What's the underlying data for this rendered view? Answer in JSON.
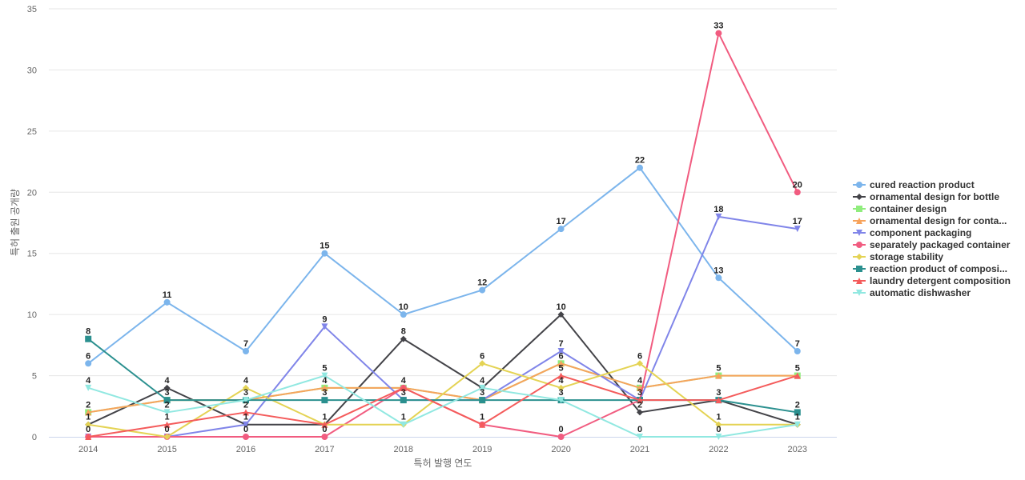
{
  "chart_data": {
    "type": "line",
    "title": "",
    "xlabel": "특허 발행 연도",
    "ylabel": "특허 출원 공개량",
    "ylim": [
      0,
      35
    ],
    "yticks": [
      0,
      5,
      10,
      15,
      20,
      25,
      30,
      35
    ],
    "grid": true,
    "legend": "right",
    "x": [
      "2014",
      "2015",
      "2016",
      "2017",
      "2018",
      "2019",
      "2020",
      "2021",
      "2022",
      "2023"
    ],
    "series": [
      {
        "name": "cured reaction product",
        "color": "#7cb5ec",
        "marker": "circle",
        "values": [
          6,
          11,
          7,
          15,
          10,
          12,
          17,
          22,
          13,
          7
        ]
      },
      {
        "name": "ornamental design for bottle",
        "color": "#434348",
        "marker": "diamond",
        "values": [
          1,
          4,
          1,
          1,
          8,
          4,
          10,
          2,
          3,
          1
        ]
      },
      {
        "name": "container design",
        "color": "#90ed7d",
        "marker": "square",
        "values": [
          2,
          3,
          3,
          4,
          4,
          3,
          6,
          4,
          5,
          5
        ]
      },
      {
        "name": "ornamental design for conta...",
        "color": "#f7a35c",
        "marker": "triangle",
        "values": [
          2,
          3,
          3,
          4,
          4,
          3,
          6,
          4,
          5,
          5
        ]
      },
      {
        "name": "component packaging",
        "color": "#8085e9",
        "marker": "triangle-down",
        "values": [
          0,
          0,
          1,
          9,
          3,
          3,
          7,
          3,
          18,
          17
        ]
      },
      {
        "name": "separately packaged container",
        "color": "#f15c80",
        "marker": "circle",
        "values": [
          0,
          0,
          0,
          0,
          4,
          1,
          0,
          3,
          33,
          20
        ]
      },
      {
        "name": "storage stability",
        "color": "#e4d354",
        "marker": "diamond",
        "values": [
          1,
          0,
          4,
          1,
          1,
          6,
          4,
          6,
          1,
          1
        ]
      },
      {
        "name": "reaction product of composi...",
        "color": "#2b908f",
        "marker": "square",
        "values": [
          8,
          3,
          3,
          3,
          3,
          3,
          3,
          3,
          3,
          2
        ]
      },
      {
        "name": "laundry detergent composition",
        "color": "#f45b5b",
        "marker": "triangle",
        "values": [
          0,
          1,
          2,
          1,
          4,
          1,
          5,
          3,
          3,
          5
        ]
      },
      {
        "name": "automatic dishwasher",
        "color": "#91e8e1",
        "marker": "triangle-down",
        "values": [
          4,
          2,
          3,
          5,
          1,
          4,
          3,
          0,
          0,
          1
        ]
      }
    ],
    "data_labels": [
      {
        "x": "2014",
        "text": "8",
        "v": 8
      },
      {
        "x": "2014",
        "text": "6",
        "v": 6
      },
      {
        "x": "2014",
        "text": "4",
        "v": 4
      },
      {
        "x": "2014",
        "text": "2",
        "v": 2
      },
      {
        "x": "2014",
        "text": "1",
        "v": 1
      },
      {
        "x": "2014",
        "text": "0",
        "v": 0
      },
      {
        "x": "2015",
        "text": "11",
        "v": 11
      },
      {
        "x": "2015",
        "text": "4",
        "v": 4
      },
      {
        "x": "2015",
        "text": "3",
        "v": 3
      },
      {
        "x": "2015",
        "text": "2",
        "v": 2
      },
      {
        "x": "2015",
        "text": "1",
        "v": 1
      },
      {
        "x": "2015",
        "text": "0",
        "v": 0
      },
      {
        "x": "2016",
        "text": "7",
        "v": 7
      },
      {
        "x": "2016",
        "text": "4",
        "v": 4
      },
      {
        "x": "2016",
        "text": "3",
        "v": 3
      },
      {
        "x": "2016",
        "text": "2",
        "v": 2
      },
      {
        "x": "2016",
        "text": "1",
        "v": 1
      },
      {
        "x": "2016",
        "text": "0",
        "v": 0
      },
      {
        "x": "2017",
        "text": "15",
        "v": 15
      },
      {
        "x": "2017",
        "text": "9",
        "v": 9
      },
      {
        "x": "2017",
        "text": "5",
        "v": 5
      },
      {
        "x": "2017",
        "text": "4",
        "v": 4
      },
      {
        "x": "2017",
        "text": "3",
        "v": 3
      },
      {
        "x": "2017",
        "text": "1",
        "v": 1
      },
      {
        "x": "2017",
        "text": "0",
        "v": 0
      },
      {
        "x": "2018",
        "text": "10",
        "v": 10
      },
      {
        "x": "2018",
        "text": "8",
        "v": 8
      },
      {
        "x": "2018",
        "text": "4",
        "v": 4
      },
      {
        "x": "2018",
        "text": "3",
        "v": 3
      },
      {
        "x": "2018",
        "text": "1",
        "v": 1
      },
      {
        "x": "2019",
        "text": "12",
        "v": 12
      },
      {
        "x": "2019",
        "text": "6",
        "v": 6
      },
      {
        "x": "2019",
        "text": "4",
        "v": 4
      },
      {
        "x": "2019",
        "text": "3",
        "v": 3
      },
      {
        "x": "2019",
        "text": "1",
        "v": 1
      },
      {
        "x": "2020",
        "text": "17",
        "v": 17
      },
      {
        "x": "2020",
        "text": "10",
        "v": 10
      },
      {
        "x": "2020",
        "text": "7",
        "v": 7
      },
      {
        "x": "2020",
        "text": "6",
        "v": 6
      },
      {
        "x": "2020",
        "text": "5",
        "v": 5
      },
      {
        "x": "2020",
        "text": "4",
        "v": 4
      },
      {
        "x": "2020",
        "text": "3",
        "v": 3
      },
      {
        "x": "2020",
        "text": "0",
        "v": 0
      },
      {
        "x": "2021",
        "text": "22",
        "v": 22
      },
      {
        "x": "2021",
        "text": "6",
        "v": 6
      },
      {
        "x": "2021",
        "text": "4",
        "v": 4
      },
      {
        "x": "2021",
        "text": "3",
        "v": 3
      },
      {
        "x": "2021",
        "text": "2",
        "v": 2
      },
      {
        "x": "2021",
        "text": "0",
        "v": 0
      },
      {
        "x": "2022",
        "text": "33",
        "v": 33
      },
      {
        "x": "2022",
        "text": "18",
        "v": 18
      },
      {
        "x": "2022",
        "text": "13",
        "v": 13
      },
      {
        "x": "2022",
        "text": "5",
        "v": 5
      },
      {
        "x": "2022",
        "text": "3",
        "v": 3
      },
      {
        "x": "2022",
        "text": "1",
        "v": 1
      },
      {
        "x": "2022",
        "text": "0",
        "v": 0
      },
      {
        "x": "2023",
        "text": "20",
        "v": 20
      },
      {
        "x": "2023",
        "text": "17",
        "v": 17
      },
      {
        "x": "2023",
        "text": "7",
        "v": 7
      },
      {
        "x": "2023",
        "text": "5",
        "v": 5
      },
      {
        "x": "2023",
        "text": "2",
        "v": 2
      },
      {
        "x": "2023",
        "text": "1",
        "v": 1
      }
    ]
  }
}
